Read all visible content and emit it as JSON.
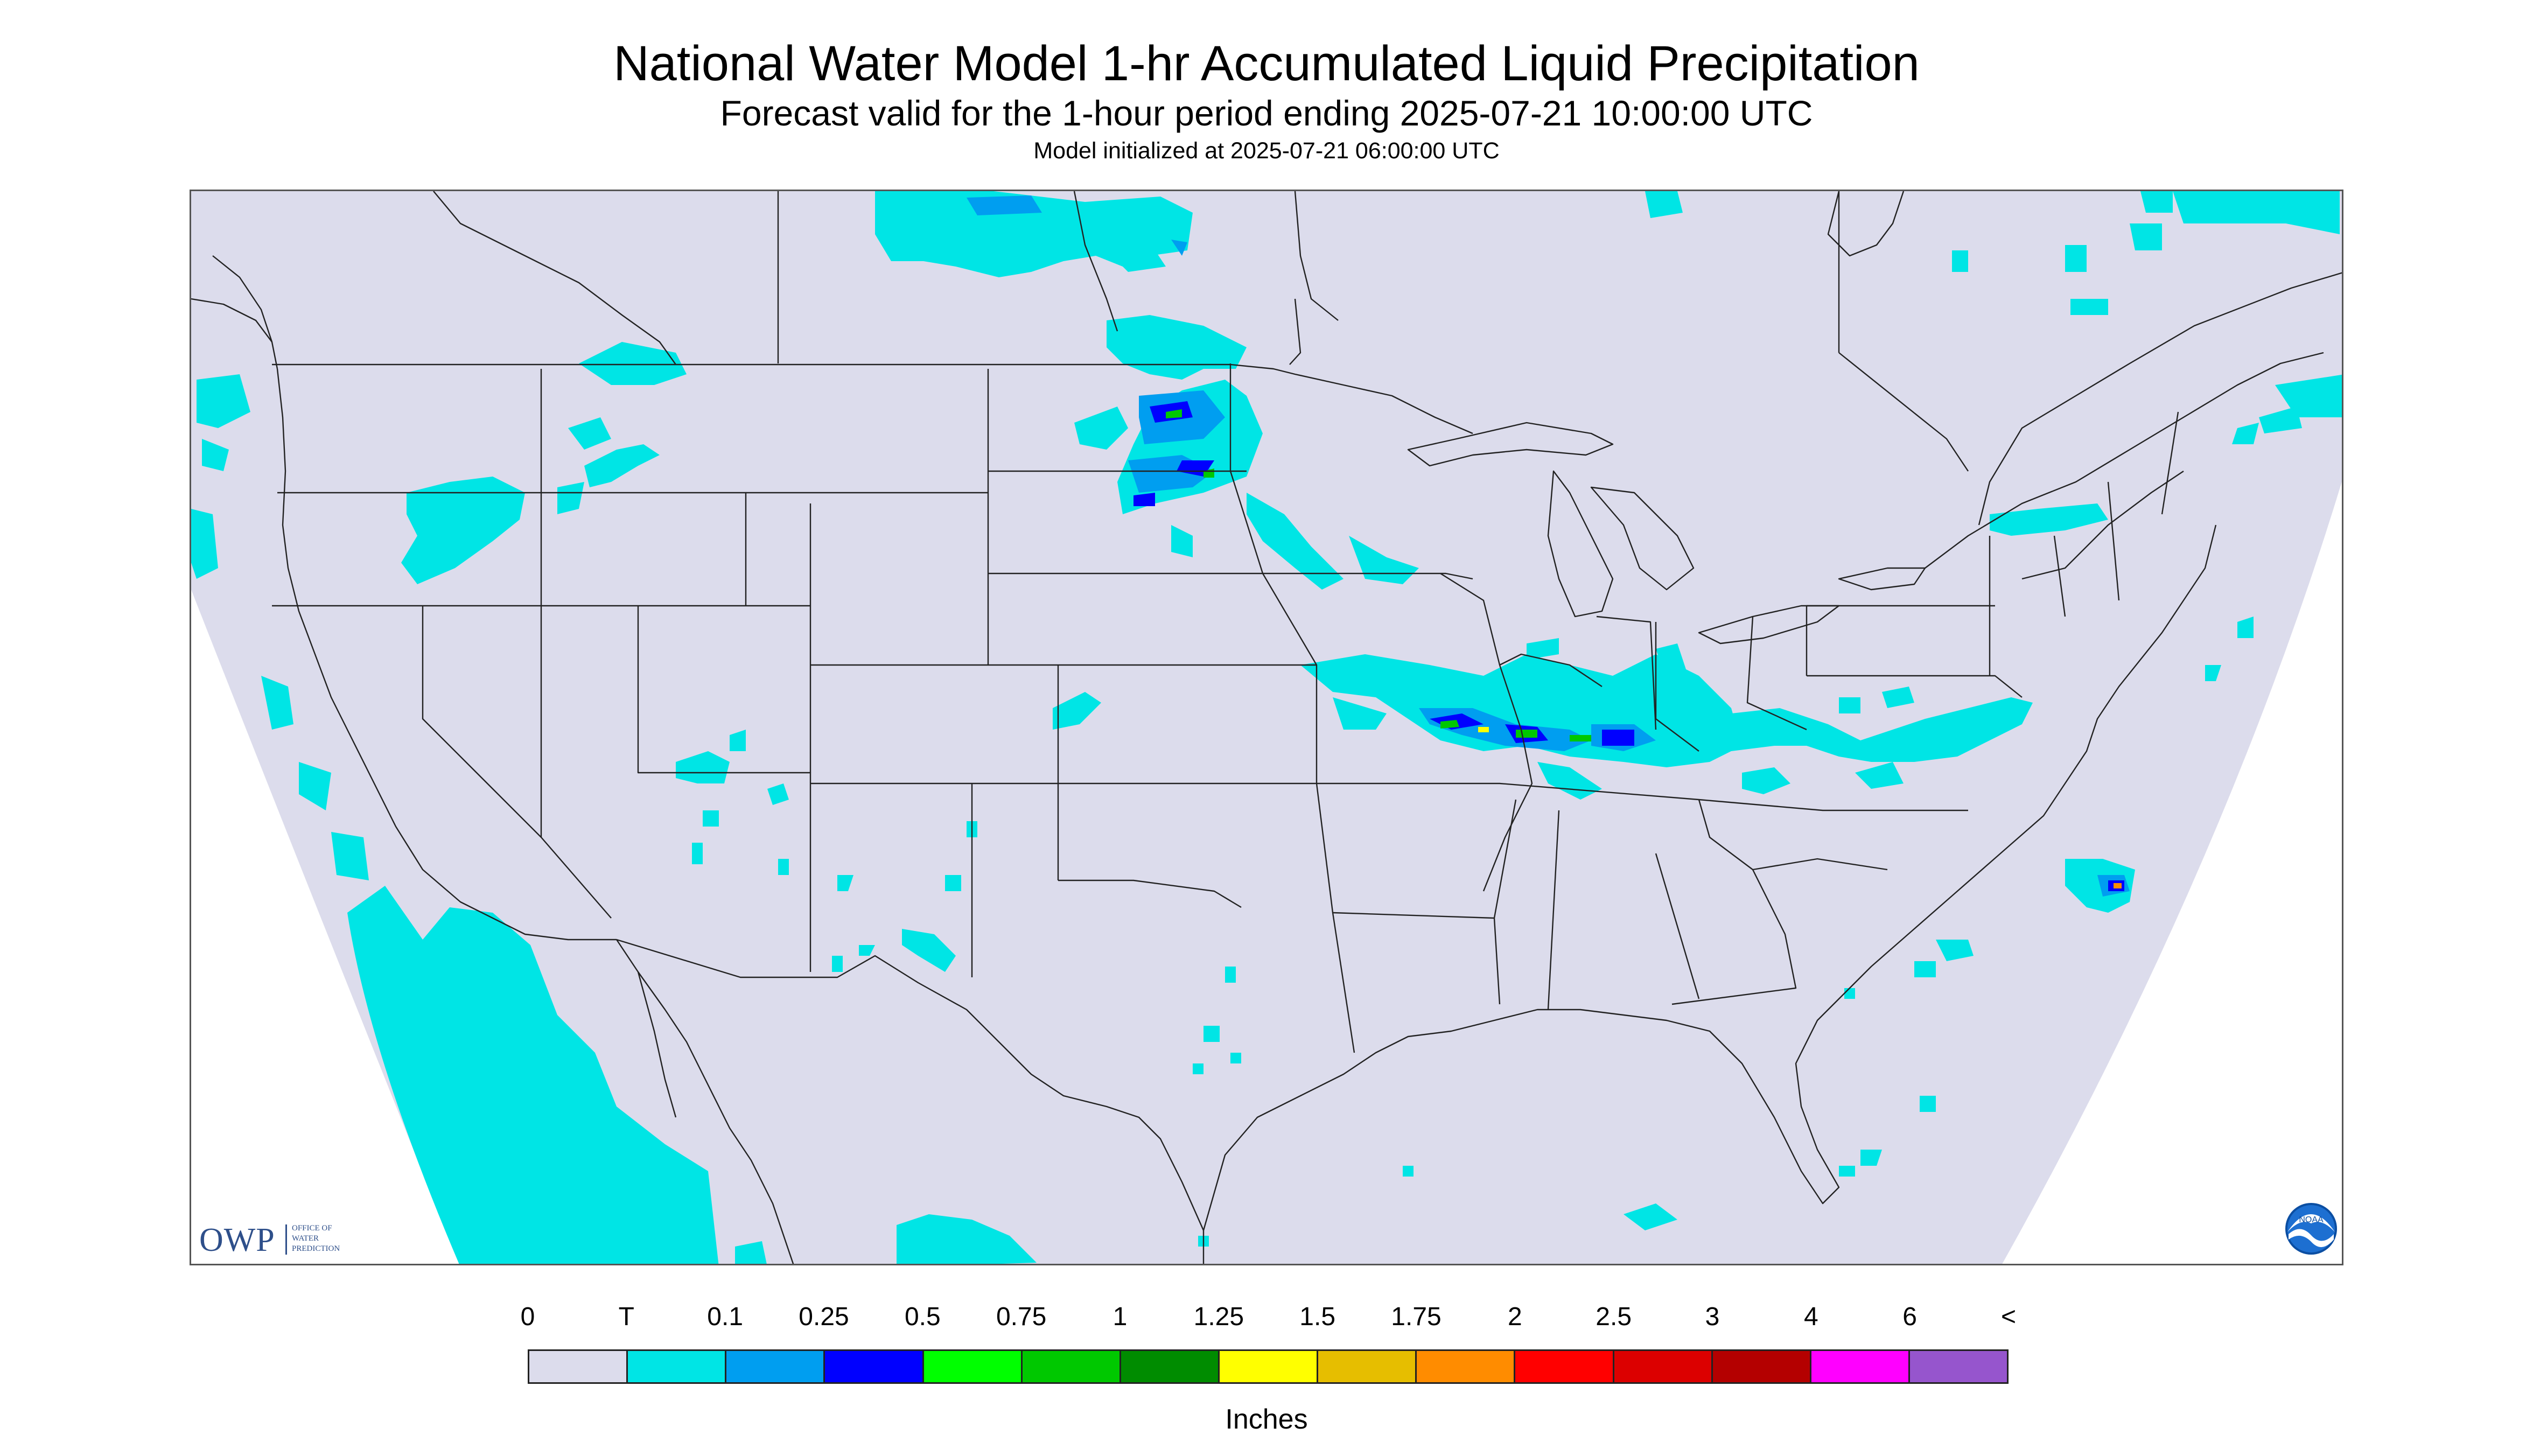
{
  "header": {
    "title": "National Water Model 1-hr Accumulated Liquid Precipitation",
    "subtitle": "Forecast valid for the 1-hour period ending 2025-07-21 10:00:00 UTC",
    "init_line": "Model initialized at 2025-07-21 06:00:00 UTC"
  },
  "map": {
    "projection": "Lambert conformal, CONUS",
    "background_color": "#dcdcec",
    "outside_color": "#ffffff",
    "boundary_color": "#222222",
    "precip_regions": [
      {
        "name": "pacific-offshore",
        "level": "T"
      },
      {
        "name": "pacific-northwest",
        "level": "T"
      },
      {
        "name": "southern-canada-prairies",
        "level": "T"
      },
      {
        "name": "north-dakota-minnesota",
        "level": "0.25"
      },
      {
        "name": "iowa-illinois-indiana-kentucky",
        "level": "0.5"
      },
      {
        "name": "ohio-virginia",
        "level": "T"
      },
      {
        "name": "southern-new-england",
        "level": "T"
      },
      {
        "name": "atlantic-offshore",
        "level": "0.75"
      },
      {
        "name": "colorado-utah",
        "level": "T"
      },
      {
        "name": "new-mexico",
        "level": "T"
      },
      {
        "name": "gulf-of-mexico",
        "level": "T"
      },
      {
        "name": "atlantic-southeast",
        "level": "T"
      }
    ]
  },
  "logos": {
    "owp": {
      "letters": "OWP",
      "line1": "OFFICE OF",
      "line2": "WATER",
      "line3": "PREDICTION"
    },
    "noaa": {
      "letters": "NOAA"
    }
  },
  "legend": {
    "labels": [
      "0",
      "T",
      "0.1",
      "0.25",
      "0.5",
      "0.75",
      "1",
      "1.25",
      "1.5",
      "1.75",
      "2",
      "2.5",
      "3",
      "4",
      "6",
      "<"
    ],
    "colors": [
      "#dcdcec",
      "#00e5e5",
      "#009ef0",
      "#0000ff",
      "#00ff00",
      "#00c800",
      "#008c00",
      "#ffff00",
      "#e6be00",
      "#ff8c00",
      "#ff0000",
      "#dc0000",
      "#b40000",
      "#ff00ff",
      "#9655cd"
    ],
    "units": "Inches"
  },
  "colors": {
    "trace": "#00e5e5",
    "light_blue": "#009ef0",
    "dark_blue": "#0000ff",
    "green": "#00ff00",
    "dark_green": "#00c800",
    "yellow": "#ffff00",
    "orange": "#ff8c00",
    "red": "#ff0000"
  }
}
